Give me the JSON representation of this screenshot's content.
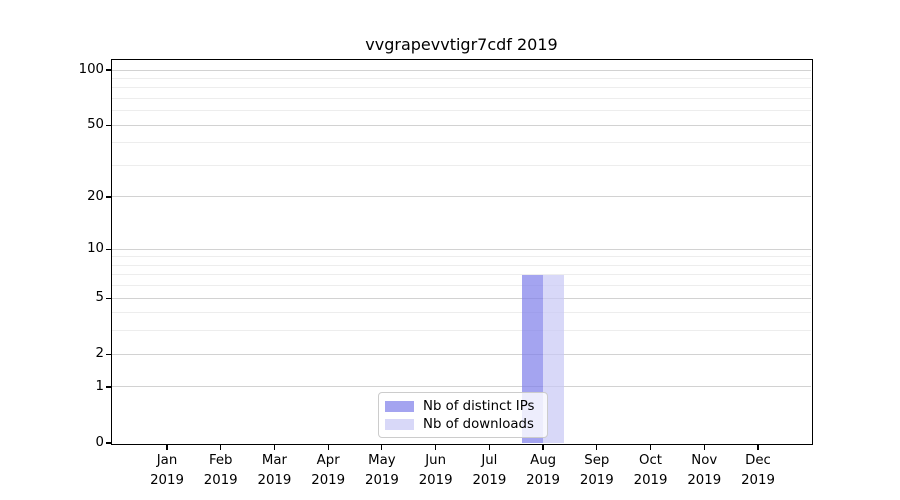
{
  "chart_data": {
    "type": "bar",
    "title": "vvgrapevvtigr7cdf 2019",
    "x_months": [
      "Jan",
      "Feb",
      "Mar",
      "Apr",
      "May",
      "Jun",
      "Jul",
      "Aug",
      "Sep",
      "Oct",
      "Nov",
      "Dec"
    ],
    "x_year": "2019",
    "categories": [
      "Jan 2019",
      "Feb 2019",
      "Mar 2019",
      "Apr 2019",
      "May 2019",
      "Jun 2019",
      "Jul 2019",
      "Aug 2019",
      "Sep 2019",
      "Oct 2019",
      "Nov 2019",
      "Dec 2019"
    ],
    "series": [
      {
        "name": "Nb of distinct IPs",
        "color": "rgba(125,125,234,0.7)",
        "solid_color": "#a4a4f0",
        "values": [
          0,
          0,
          0,
          0,
          0,
          0,
          0,
          7,
          0,
          0,
          0,
          0
        ]
      },
      {
        "name": "Nb of downloads",
        "color": "rgba(199,199,245,0.7)",
        "solid_color": "#d8d8f8",
        "values": [
          0,
          0,
          0,
          0,
          0,
          0,
          0,
          7,
          0,
          0,
          0,
          0
        ]
      }
    ],
    "yscale": "log1p",
    "ylim": [
      0,
      113
    ],
    "y_major_ticks": [
      0,
      1,
      2,
      5,
      10,
      20,
      50,
      100
    ],
    "y_minor_gridlines": [
      3,
      4,
      6,
      7,
      8,
      9,
      30,
      40,
      60,
      70,
      80,
      90
    ],
    "grid": true,
    "legend_position": "lower center"
  },
  "colors": {
    "background": "#ffffff",
    "spine": "#000000",
    "grid_major": "#d2d2d2",
    "grid_minor": "#ededed",
    "text": "#000000",
    "legend_border": "#cccccc",
    "legend_bg": "rgba(255,255,255,0.8)"
  },
  "legend": {
    "items": [
      {
        "label": "Nb of distinct IPs"
      },
      {
        "label": "Nb of downloads"
      }
    ]
  }
}
